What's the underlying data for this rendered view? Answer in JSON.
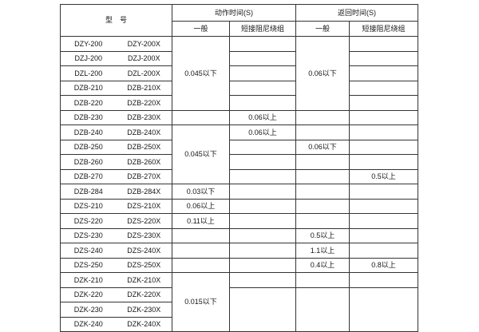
{
  "colors": {
    "grid": "#343434",
    "text": "#161616",
    "background": "#ffffff"
  },
  "header": {
    "model": "型　号",
    "action_time": "动作时间(S)",
    "return_time": "返回时间(S)",
    "general_action": "一般",
    "short_damping_action": "短接阻尼绕组",
    "general_return": "一般",
    "short_damping_return": "短接阻尼绕组"
  },
  "rows": [
    {
      "cells": [
        {
          "model_a": "DZY-200",
          "model_b": "DZY-200X"
        },
        {
          "col": "action-general",
          "rowspan": 5,
          "text": "0.045以下"
        },
        {
          "col": "action-short",
          "text": ""
        },
        {
          "col": "return-general",
          "rowspan": 5,
          "text": "0.06以下"
        },
        {
          "col": "return-short",
          "text": ""
        }
      ]
    },
    {
      "cells": [
        {
          "model_a": "DZJ-200",
          "model_b": "DZJ-200X"
        },
        {
          "col": "action-short",
          "text": ""
        },
        {
          "col": "return-short",
          "text": ""
        }
      ]
    },
    {
      "cells": [
        {
          "model_a": "DZL-200",
          "model_b": "DZL-200X"
        },
        {
          "col": "action-short",
          "text": ""
        },
        {
          "col": "return-short",
          "text": ""
        }
      ]
    },
    {
      "cells": [
        {
          "model_a": "DZB-210",
          "model_b": "DZB-210X"
        },
        {
          "col": "action-short",
          "text": ""
        },
        {
          "col": "return-short",
          "text": ""
        }
      ]
    },
    {
      "cells": [
        {
          "model_a": "DZB-220",
          "model_b": "DZB-220X"
        },
        {
          "col": "action-short",
          "text": ""
        },
        {
          "col": "return-short",
          "text": ""
        }
      ]
    },
    {
      "cells": [
        {
          "model_a": "DZB-230",
          "model_b": "DZB-230X"
        },
        {
          "col": "action-general",
          "text": ""
        },
        {
          "col": "action-short",
          "text": "0.06以上"
        },
        {
          "col": "return-general",
          "text": ""
        },
        {
          "col": "return-short",
          "text": ""
        }
      ]
    },
    {
      "cells": [
        {
          "model_a": "DZB-240",
          "model_b": "DZB-240X"
        },
        {
          "col": "action-general",
          "rowspan": 4,
          "text": "0.045以下"
        },
        {
          "col": "action-short",
          "text": "0.06以上"
        },
        {
          "col": "return-general",
          "text": ""
        },
        {
          "col": "return-short",
          "text": ""
        }
      ]
    },
    {
      "cells": [
        {
          "model_a": "DZB-250",
          "model_b": "DZB-250X"
        },
        {
          "col": "action-short",
          "text": ""
        },
        {
          "col": "return-general",
          "text": "0.06以下"
        },
        {
          "col": "return-short",
          "text": ""
        }
      ]
    },
    {
      "cells": [
        {
          "model_a": "DZB-260",
          "model_b": "DZB-260X"
        },
        {
          "col": "action-short",
          "text": ""
        },
        {
          "col": "return-general",
          "text": ""
        },
        {
          "col": "return-short",
          "text": ""
        }
      ]
    },
    {
      "cells": [
        {
          "model_a": "DZB-270",
          "model_b": "DZB-270X"
        },
        {
          "col": "action-short",
          "text": ""
        },
        {
          "col": "return-general",
          "text": ""
        },
        {
          "col": "return-short",
          "text": "0.5以上"
        }
      ]
    },
    {
      "cells": [
        {
          "model_a": "DZB-284",
          "model_b": "DZB-284X"
        },
        {
          "col": "action-general",
          "text": "0.03以下"
        },
        {
          "col": "action-short",
          "text": ""
        },
        {
          "col": "return-general",
          "text": ""
        },
        {
          "col": "return-short",
          "text": ""
        }
      ]
    },
    {
      "cells": [
        {
          "model_a": "DZS-210",
          "model_b": "DZS-210X"
        },
        {
          "col": "action-general",
          "text": "0.06以上"
        },
        {
          "col": "action-short",
          "text": ""
        },
        {
          "col": "return-general",
          "text": ""
        },
        {
          "col": "return-short",
          "text": ""
        }
      ]
    },
    {
      "cells": [
        {
          "model_a": "DZS-220",
          "model_b": "DZS-220X"
        },
        {
          "col": "action-general",
          "text": "0.11以上"
        },
        {
          "col": "action-short",
          "text": ""
        },
        {
          "col": "return-general",
          "text": ""
        },
        {
          "col": "return-short",
          "text": ""
        }
      ]
    },
    {
      "cells": [
        {
          "model_a": "DZS-230",
          "model_b": "DZS-230X"
        },
        {
          "col": "action-general",
          "text": ""
        },
        {
          "col": "action-short",
          "text": ""
        },
        {
          "col": "return-general",
          "text": "0.5以上"
        },
        {
          "col": "return-short",
          "text": ""
        }
      ]
    },
    {
      "cells": [
        {
          "model_a": "DZS-240",
          "model_b": "DZS-240X"
        },
        {
          "col": "action-general",
          "text": ""
        },
        {
          "col": "action-short",
          "text": ""
        },
        {
          "col": "return-general",
          "text": "1.1以上"
        },
        {
          "col": "return-short",
          "text": ""
        }
      ]
    },
    {
      "cells": [
        {
          "model_a": "DZS-250",
          "model_b": "DZS-250X"
        },
        {
          "col": "action-general",
          "text": ""
        },
        {
          "col": "action-short",
          "text": ""
        },
        {
          "col": "return-general",
          "text": "0.4以上"
        },
        {
          "col": "return-short",
          "text": "0.8以上"
        }
      ]
    },
    {
      "cells": [
        {
          "model_a": "DZK-210",
          "model_b": "DZK-210X"
        },
        {
          "col": "action-general",
          "rowspan": 4,
          "text": "0.015以下"
        },
        {
          "col": "action-short",
          "text": ""
        },
        {
          "col": "return-general",
          "text": ""
        },
        {
          "col": "return-short",
          "text": ""
        }
      ]
    },
    {
      "cells": [
        {
          "model_a": "DZK-220",
          "model_b": "DZK-220X"
        },
        {
          "col": "action-short",
          "rowspan": 3,
          "text": ""
        },
        {
          "col": "return-general",
          "rowspan": 3,
          "text": ""
        },
        {
          "col": "return-short",
          "rowspan": 3,
          "text": ""
        }
      ]
    },
    {
      "cells": [
        {
          "model_a": "DZK-230",
          "model_b": "DZK-230X"
        }
      ]
    },
    {
      "cells": [
        {
          "model_a": "DZK-240",
          "model_b": "DZK-240X"
        }
      ]
    }
  ]
}
